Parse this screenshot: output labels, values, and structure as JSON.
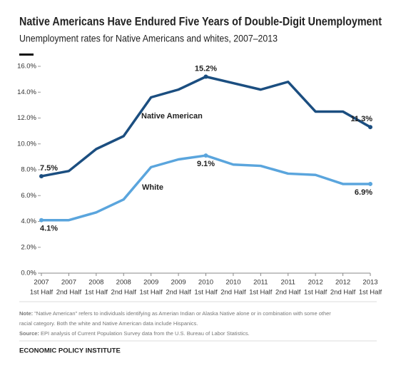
{
  "chart_data": {
    "type": "line",
    "title": "Native Americans Have Endured Five Years of Double-Digit Unemployment",
    "subtitle": "Unemployment rates for Native Americans and whites, 2007–2013",
    "categories": [
      [
        "2007",
        "1st Half"
      ],
      [
        "2007",
        "2nd Half"
      ],
      [
        "2008",
        "1st Half"
      ],
      [
        "2008",
        "2nd Half"
      ],
      [
        "2009",
        "1st Half"
      ],
      [
        "2009",
        "2nd Half"
      ],
      [
        "2010",
        "1st Half"
      ],
      [
        "2010",
        "2nd Half"
      ],
      [
        "2011",
        "1st Half"
      ],
      [
        "2011",
        "2nd Half"
      ],
      [
        "2012",
        "1st Half"
      ],
      [
        "2012",
        "2nd Half"
      ],
      [
        "2013",
        "1st Half"
      ]
    ],
    "series": [
      {
        "name": "Native American",
        "color": "#1b4e80",
        "values": [
          7.5,
          7.9,
          9.6,
          10.6,
          13.6,
          14.2,
          15.2,
          14.7,
          14.2,
          14.8,
          12.5,
          12.5,
          11.3
        ],
        "value_labels": [
          "7.5%",
          null,
          null,
          null,
          null,
          null,
          "15.2%",
          null,
          null,
          null,
          null,
          null,
          "11.3%"
        ]
      },
      {
        "name": "White",
        "color": "#5aa5dd",
        "values": [
          4.1,
          4.1,
          4.7,
          5.7,
          8.2,
          8.8,
          9.1,
          8.4,
          8.3,
          7.7,
          7.6,
          6.9,
          6.9
        ],
        "value_labels": [
          "4.1%",
          null,
          null,
          null,
          null,
          null,
          "9.1%",
          null,
          null,
          null,
          null,
          null,
          "6.9%"
        ]
      }
    ],
    "ylim": [
      0,
      16
    ],
    "yticks": [
      {
        "value": 0,
        "label": "0.0%"
      },
      {
        "value": 2,
        "label": "2.0%"
      },
      {
        "value": 4,
        "label": "4.0%"
      },
      {
        "value": 6,
        "label": "6.0%"
      },
      {
        "value": 8,
        "label": "8.0%"
      },
      {
        "value": 10,
        "label": "10.0%"
      },
      {
        "value": 12,
        "label": "12.0%"
      },
      {
        "value": 14,
        "label": "14.0%"
      },
      {
        "value": 16,
        "label": "16.0%"
      }
    ],
    "grid": false,
    "note_label": "Note:",
    "note": "\"Native American\" refers to individuals identifying as Amerian Indian or Alaska Native alone or in combination with some other",
    "note_cont": "racial category. Both the white and Native American data include Hispanics.",
    "source_label": "Source:",
    "source": "EPI analysis of Current Population Survey data from the U.S. Bureau of Labor Statistics.",
    "footer": "ECONOMIC POLICY INSTITUTE"
  }
}
